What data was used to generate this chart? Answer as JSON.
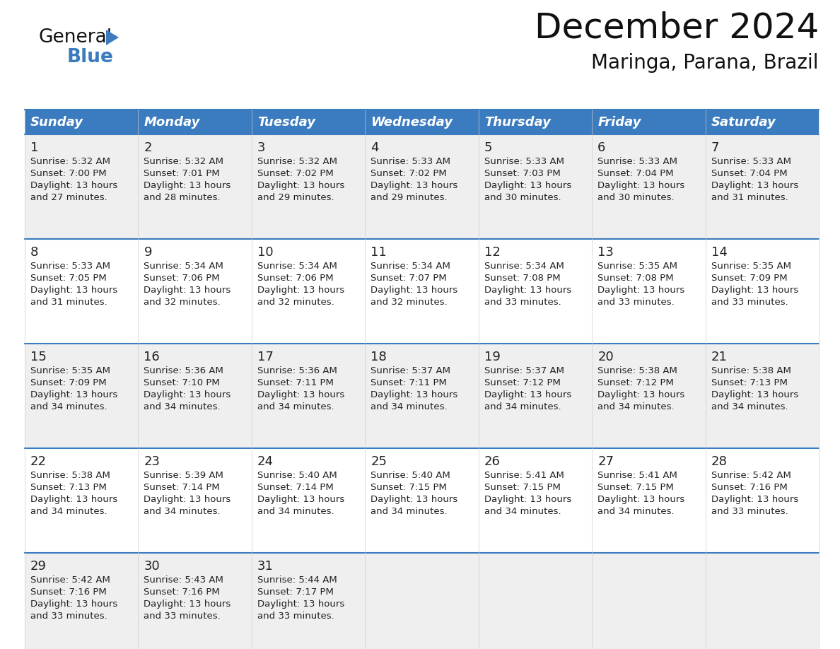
{
  "title": "December 2024",
  "subtitle": "Maringa, Parana, Brazil",
  "header_bg_color": "#3b7bbf",
  "header_text_color": "#ffffff",
  "row_bg_even": "#efefef",
  "row_bg_odd": "#ffffff",
  "divider_color": "#3b7bbf",
  "day_names": [
    "Sunday",
    "Monday",
    "Tuesday",
    "Wednesday",
    "Thursday",
    "Friday",
    "Saturday"
  ],
  "calendar": [
    [
      {
        "day": 1,
        "sunrise": "5:32 AM",
        "sunset": "7:00 PM",
        "daylight": "13 hours and 27 minutes."
      },
      {
        "day": 2,
        "sunrise": "5:32 AM",
        "sunset": "7:01 PM",
        "daylight": "13 hours and 28 minutes."
      },
      {
        "day": 3,
        "sunrise": "5:32 AM",
        "sunset": "7:02 PM",
        "daylight": "13 hours and 29 minutes."
      },
      {
        "day": 4,
        "sunrise": "5:33 AM",
        "sunset": "7:02 PM",
        "daylight": "13 hours and 29 minutes."
      },
      {
        "day": 5,
        "sunrise": "5:33 AM",
        "sunset": "7:03 PM",
        "daylight": "13 hours and 30 minutes."
      },
      {
        "day": 6,
        "sunrise": "5:33 AM",
        "sunset": "7:04 PM",
        "daylight": "13 hours and 30 minutes."
      },
      {
        "day": 7,
        "sunrise": "5:33 AM",
        "sunset": "7:04 PM",
        "daylight": "13 hours and 31 minutes."
      }
    ],
    [
      {
        "day": 8,
        "sunrise": "5:33 AM",
        "sunset": "7:05 PM",
        "daylight": "13 hours and 31 minutes."
      },
      {
        "day": 9,
        "sunrise": "5:34 AM",
        "sunset": "7:06 PM",
        "daylight": "13 hours and 32 minutes."
      },
      {
        "day": 10,
        "sunrise": "5:34 AM",
        "sunset": "7:06 PM",
        "daylight": "13 hours and 32 minutes."
      },
      {
        "day": 11,
        "sunrise": "5:34 AM",
        "sunset": "7:07 PM",
        "daylight": "13 hours and 32 minutes."
      },
      {
        "day": 12,
        "sunrise": "5:34 AM",
        "sunset": "7:08 PM",
        "daylight": "13 hours and 33 minutes."
      },
      {
        "day": 13,
        "sunrise": "5:35 AM",
        "sunset": "7:08 PM",
        "daylight": "13 hours and 33 minutes."
      },
      {
        "day": 14,
        "sunrise": "5:35 AM",
        "sunset": "7:09 PM",
        "daylight": "13 hours and 33 minutes."
      }
    ],
    [
      {
        "day": 15,
        "sunrise": "5:35 AM",
        "sunset": "7:09 PM",
        "daylight": "13 hours and 34 minutes."
      },
      {
        "day": 16,
        "sunrise": "5:36 AM",
        "sunset": "7:10 PM",
        "daylight": "13 hours and 34 minutes."
      },
      {
        "day": 17,
        "sunrise": "5:36 AM",
        "sunset": "7:11 PM",
        "daylight": "13 hours and 34 minutes."
      },
      {
        "day": 18,
        "sunrise": "5:37 AM",
        "sunset": "7:11 PM",
        "daylight": "13 hours and 34 minutes."
      },
      {
        "day": 19,
        "sunrise": "5:37 AM",
        "sunset": "7:12 PM",
        "daylight": "13 hours and 34 minutes."
      },
      {
        "day": 20,
        "sunrise": "5:38 AM",
        "sunset": "7:12 PM",
        "daylight": "13 hours and 34 minutes."
      },
      {
        "day": 21,
        "sunrise": "5:38 AM",
        "sunset": "7:13 PM",
        "daylight": "13 hours and 34 minutes."
      }
    ],
    [
      {
        "day": 22,
        "sunrise": "5:38 AM",
        "sunset": "7:13 PM",
        "daylight": "13 hours and 34 minutes."
      },
      {
        "day": 23,
        "sunrise": "5:39 AM",
        "sunset": "7:14 PM",
        "daylight": "13 hours and 34 minutes."
      },
      {
        "day": 24,
        "sunrise": "5:40 AM",
        "sunset": "7:14 PM",
        "daylight": "13 hours and 34 minutes."
      },
      {
        "day": 25,
        "sunrise": "5:40 AM",
        "sunset": "7:15 PM",
        "daylight": "13 hours and 34 minutes."
      },
      {
        "day": 26,
        "sunrise": "5:41 AM",
        "sunset": "7:15 PM",
        "daylight": "13 hours and 34 minutes."
      },
      {
        "day": 27,
        "sunrise": "5:41 AM",
        "sunset": "7:15 PM",
        "daylight": "13 hours and 34 minutes."
      },
      {
        "day": 28,
        "sunrise": "5:42 AM",
        "sunset": "7:16 PM",
        "daylight": "13 hours and 33 minutes."
      }
    ],
    [
      {
        "day": 29,
        "sunrise": "5:42 AM",
        "sunset": "7:16 PM",
        "daylight": "13 hours and 33 minutes."
      },
      {
        "day": 30,
        "sunrise": "5:43 AM",
        "sunset": "7:16 PM",
        "daylight": "13 hours and 33 minutes."
      },
      {
        "day": 31,
        "sunrise": "5:44 AM",
        "sunset": "7:17 PM",
        "daylight": "13 hours and 33 minutes."
      },
      null,
      null,
      null,
      null
    ]
  ],
  "logo_triangle_color": "#3b7bbf",
  "title_fontsize": 36,
  "subtitle_fontsize": 20,
  "header_fontsize": 13,
  "day_num_fontsize": 13,
  "cell_text_fontsize": 9.5
}
